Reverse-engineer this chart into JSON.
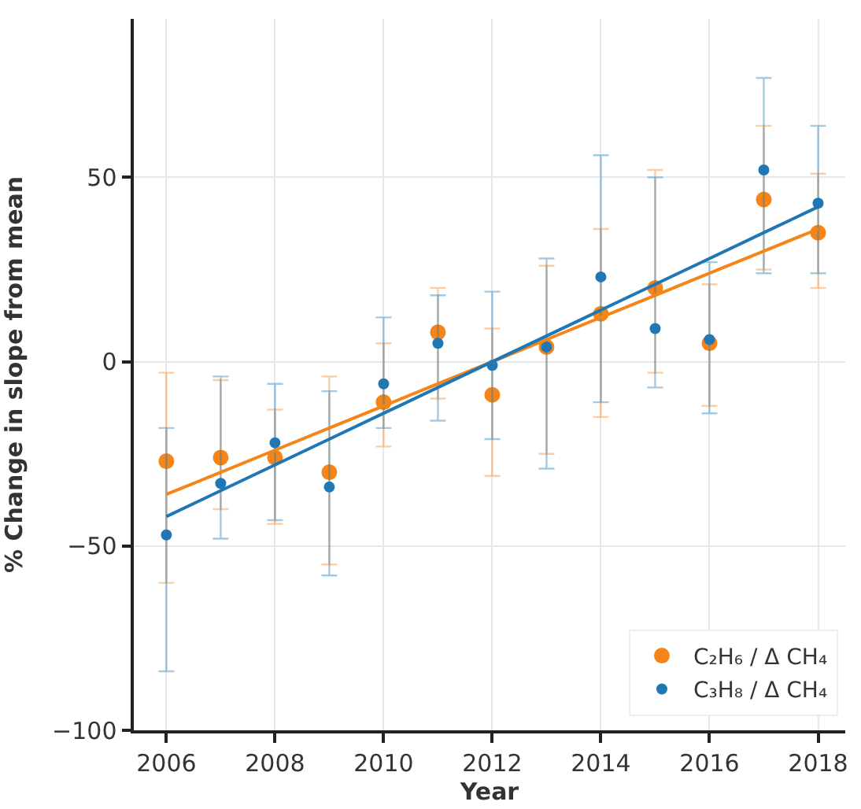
{
  "chart_data": {
    "type": "scatter",
    "xlabel": "Year",
    "ylabel": "% Change in slope from mean",
    "x": [
      2006,
      2007,
      2008,
      2009,
      2010,
      2011,
      2012,
      2013,
      2014,
      2015,
      2016,
      2017,
      2018
    ],
    "series": [
      {
        "name": "C₂H₆ / Δ CH₄",
        "color": "#f58518",
        "values": [
          -27,
          -26,
          -26,
          -30,
          -11,
          8,
          -9,
          4,
          13,
          20,
          5,
          44,
          35
        ],
        "errors": [
          [
            -60,
            -3
          ],
          [
            -40,
            -5
          ],
          [
            -44,
            -13
          ],
          [
            -55,
            -4
          ],
          [
            -23,
            5
          ],
          [
            -10,
            20
          ],
          [
            -31,
            9
          ],
          [
            -25,
            26
          ],
          [
            -15,
            36
          ],
          [
            -3,
            52
          ],
          [
            -12,
            21
          ],
          [
            25,
            64
          ],
          [
            20,
            51
          ]
        ]
      },
      {
        "name": "C₃H₈ / Δ CH₄",
        "color": "#1f77b4",
        "values": [
          -47,
          -33,
          -22,
          -34,
          -6,
          5,
          -1,
          4,
          23,
          9,
          6,
          52,
          43
        ],
        "errors": [
          [
            -84,
            -18
          ],
          [
            -48,
            -4
          ],
          [
            -43,
            -6
          ],
          [
            -58,
            -8
          ],
          [
            -18,
            12
          ],
          [
            -16,
            18
          ],
          [
            -21,
            19
          ],
          [
            -29,
            28
          ],
          [
            -11,
            56
          ],
          [
            -7,
            50
          ],
          [
            -14,
            27
          ],
          [
            24,
            77
          ],
          [
            24,
            64
          ]
        ]
      },
      {
        "type": "line",
        "marker": "none",
        "color": "#f58518",
        "values": [
          -36,
          -30,
          -24,
          -18,
          -12,
          -6,
          0,
          6,
          12,
          18,
          24,
          30,
          36
        ]
      },
      {
        "type": "line",
        "marker": "none",
        "color": "#1f77b4",
        "values": [
          -42,
          -35,
          -28,
          -21,
          -14,
          -7,
          0,
          7,
          14,
          21,
          28,
          35,
          42
        ]
      }
    ],
    "xlim": [
      2005.4,
      2018.5
    ],
    "xticks": [
      2006,
      2008,
      2010,
      2012,
      2014,
      2016,
      2018
    ],
    "ylim": [
      -100,
      93
    ],
    "yticks": [
      -100,
      -50,
      0,
      50
    ],
    "grid": true,
    "legend": "bottom right",
    "marker": "circle"
  }
}
